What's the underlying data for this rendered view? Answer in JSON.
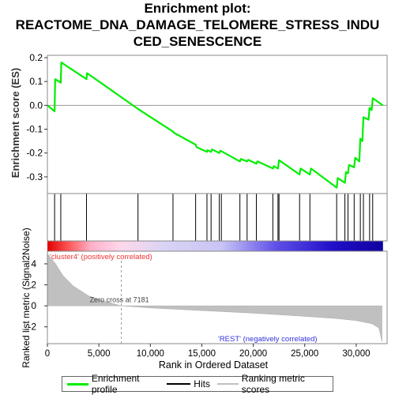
{
  "chart_data": {
    "type": "line",
    "title_lines": [
      "Enrichment plot:",
      "REACTOME_DNA_DAMAGE_TELOMERE_STRESS_INDU",
      "CED_SENESCENCE"
    ],
    "ylabel_top": "Enrichment score (ES)",
    "ylabel_bottom": "Ranked list metric (Signal2Noise)",
    "xlabel": "Rank in Ordered Dataset",
    "xlim": [
      0,
      33000
    ],
    "es_ylim": [
      -0.37,
      0.21
    ],
    "metric_ylim": [
      -3.6,
      5.2
    ],
    "x_ticks": [
      0,
      5000,
      10000,
      15000,
      20000,
      25000,
      30000
    ],
    "x_tick_labels": [
      "0",
      "5,000",
      "10,000",
      "15,000",
      "20,000",
      "25,000",
      "30,000"
    ],
    "es_ticks": [
      0.2,
      0.1,
      0.0,
      -0.1,
      -0.2,
      -0.3
    ],
    "es_tick_labels": [
      "0.2",
      "0.1",
      "0.0",
      "-0.1",
      "-0.2",
      "-0.3"
    ],
    "metric_ticks": [
      4,
      2,
      0,
      -2
    ],
    "metric_tick_labels": [
      "4",
      "2",
      "0",
      "-2"
    ],
    "series": [
      {
        "name": "Enrichment profile",
        "color": "#00ee00",
        "points": [
          [
            0,
            0.0
          ],
          [
            700,
            -0.025
          ],
          [
            750,
            0.11
          ],
          [
            1300,
            0.095
          ],
          [
            1350,
            0.18
          ],
          [
            3800,
            0.11
          ],
          [
            3850,
            0.135
          ],
          [
            8800,
            -0.015
          ],
          [
            12200,
            -0.11
          ],
          [
            12300,
            -0.115
          ],
          [
            14400,
            -0.165
          ],
          [
            14500,
            -0.175
          ],
          [
            15500,
            -0.195
          ],
          [
            15550,
            -0.188
          ],
          [
            15900,
            -0.195
          ],
          [
            16000,
            -0.185
          ],
          [
            16700,
            -0.2
          ],
          [
            16800,
            -0.19
          ],
          [
            18700,
            -0.235
          ],
          [
            18800,
            -0.225
          ],
          [
            19400,
            -0.235
          ],
          [
            19500,
            -0.228
          ],
          [
            20300,
            -0.245
          ],
          [
            20400,
            -0.235
          ],
          [
            21900,
            -0.265
          ],
          [
            22000,
            -0.255
          ],
          [
            22400,
            -0.265
          ],
          [
            22500,
            -0.23
          ],
          [
            24500,
            -0.29
          ],
          [
            24600,
            -0.265
          ],
          [
            25500,
            -0.29
          ],
          [
            25600,
            -0.265
          ],
          [
            28100,
            -0.345
          ],
          [
            28200,
            -0.305
          ],
          [
            28900,
            -0.325
          ],
          [
            29000,
            -0.28
          ],
          [
            29200,
            -0.285
          ],
          [
            29300,
            -0.25
          ],
          [
            29800,
            -0.26
          ],
          [
            29900,
            -0.22
          ],
          [
            30300,
            -0.235
          ],
          [
            30400,
            -0.14
          ],
          [
            30600,
            -0.15
          ],
          [
            30700,
            -0.05
          ],
          [
            31200,
            -0.06
          ],
          [
            31300,
            -0.01
          ],
          [
            31500,
            -0.02
          ],
          [
            31600,
            0.03
          ],
          [
            32600,
            0.0
          ]
        ]
      }
    ],
    "hits": [
      700,
      1300,
      3800,
      8800,
      12200,
      14400,
      15500,
      15900,
      16700,
      16900,
      18700,
      19400,
      20300,
      21900,
      22400,
      22500,
      24500,
      25500,
      28100,
      28900,
      29200,
      29800,
      30400,
      30700,
      31300,
      31600
    ],
    "zero_cross_rank": 7181,
    "metric_curve": [
      [
        0,
        5.0
      ],
      [
        300,
        4.6
      ],
      [
        800,
        4.0
      ],
      [
        1500,
        2.9
      ],
      [
        2500,
        1.9
      ],
      [
        4000,
        0.95
      ],
      [
        5500,
        0.45
      ],
      [
        7181,
        0.0
      ],
      [
        10000,
        -0.2
      ],
      [
        15000,
        -0.45
      ],
      [
        20000,
        -0.7
      ],
      [
        25000,
        -1.0
      ],
      [
        28000,
        -1.2
      ],
      [
        30000,
        -1.4
      ],
      [
        31500,
        -1.7
      ],
      [
        32200,
        -2.1
      ],
      [
        32500,
        -3.4
      ]
    ],
    "annotations": {
      "zero_cross": "Zero cross at 7181",
      "pos_label": "'cluster4' (positively correlated)",
      "neg_label": "'REST' (negatively correlated)"
    },
    "colors": {
      "profile": "#00ee00",
      "hits": "#000000",
      "metric_fill": "#c0c0c0",
      "pos_label": "#ee3333",
      "neg_label": "#3333dd",
      "frame": "#888888"
    }
  },
  "legend": {
    "items": [
      {
        "label": "Enrichment profile",
        "color": "#00ee00"
      },
      {
        "label": "Hits",
        "color": "#000000"
      },
      {
        "label": "Ranking metric scores",
        "color": "#c0c0c0"
      }
    ]
  }
}
